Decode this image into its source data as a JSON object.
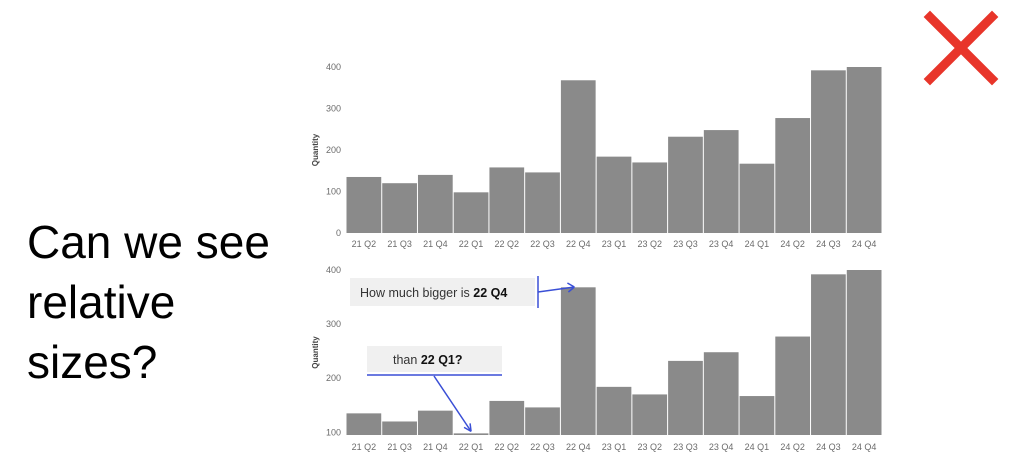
{
  "slide": {
    "question_lines": [
      "Can we see",
      "relative",
      "sizes?"
    ],
    "verdict_icon": "red-x-icon",
    "verdict_color": "#e8352a"
  },
  "chart_data": [
    {
      "type": "bar",
      "categories": [
        "21 Q2",
        "21 Q3",
        "21 Q4",
        "22 Q1",
        "22 Q2",
        "22 Q3",
        "22 Q4",
        "23 Q1",
        "23 Q2",
        "23 Q3",
        "23 Q4",
        "24 Q1",
        "24 Q2",
        "24 Q3",
        "24 Q4"
      ],
      "values": [
        135,
        120,
        140,
        98,
        158,
        146,
        368,
        184,
        170,
        232,
        248,
        167,
        277,
        392,
        400
      ],
      "ylabel": "Quantity",
      "ylim": [
        0,
        400
      ],
      "yticks": [
        0,
        100,
        200,
        300,
        400
      ],
      "bar_color": "#8a8a8a",
      "grid": false
    },
    {
      "type": "bar",
      "categories": [
        "21 Q2",
        "21 Q3",
        "21 Q4",
        "22 Q1",
        "22 Q2",
        "22 Q3",
        "22 Q4",
        "23 Q1",
        "23 Q2",
        "23 Q3",
        "23 Q4",
        "24 Q1",
        "24 Q2",
        "24 Q3",
        "24 Q4"
      ],
      "values": [
        135,
        120,
        140,
        98,
        158,
        146,
        368,
        184,
        170,
        232,
        248,
        167,
        277,
        392,
        400
      ],
      "ylabel": "Quantity",
      "ylim": [
        95,
        400
      ],
      "yticks": [
        100,
        200,
        300,
        400
      ],
      "bar_color": "#8a8a8a",
      "grid": false,
      "annotations": [
        {
          "prefix": "How much bigger is ",
          "bold": "22 Q4",
          "target": "22 Q4"
        },
        {
          "prefix": "than ",
          "bold": "22 Q1?",
          "target": "22 Q1"
        }
      ],
      "annotation_color": "#3a4fd6"
    }
  ]
}
